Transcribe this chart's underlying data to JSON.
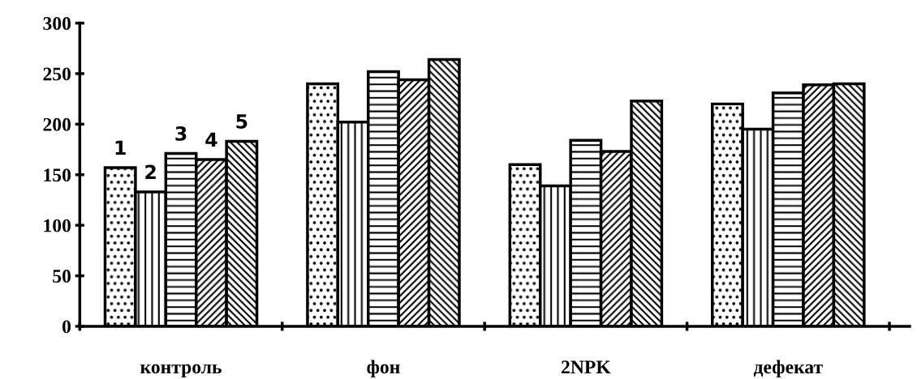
{
  "chart_data": {
    "type": "bar",
    "categories": [
      "контроль",
      "фон",
      "2NPK",
      "дефекат"
    ],
    "series": [
      {
        "name": "1",
        "values": [
          157,
          240,
          160,
          220
        ]
      },
      {
        "name": "2",
        "values": [
          133,
          202,
          139,
          195
        ]
      },
      {
        "name": "3",
        "values": [
          171,
          252,
          184,
          231
        ]
      },
      {
        "name": "4",
        "values": [
          165,
          244,
          173,
          239
        ]
      },
      {
        "name": "5",
        "values": [
          183,
          264,
          223,
          240
        ]
      }
    ],
    "ylim": [
      0,
      300
    ],
    "yticks": [
      0,
      50,
      100,
      150,
      200,
      250,
      300
    ],
    "grid": false,
    "legend": false
  }
}
